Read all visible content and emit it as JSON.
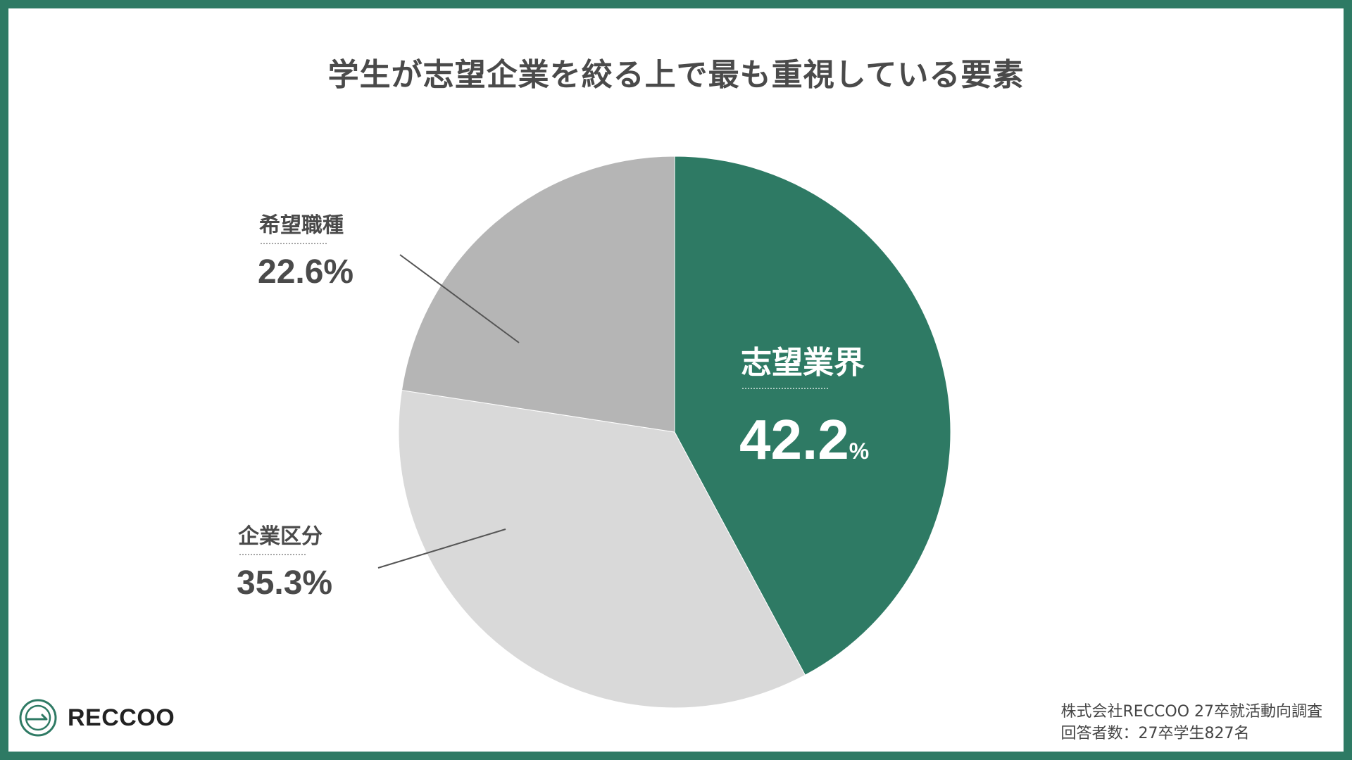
{
  "title": "学生が志望企業を絞る上で最も重視している要素",
  "chart_data": {
    "type": "pie",
    "title": "学生が志望企業を絞る上で最も重視している要素",
    "unit": "%",
    "slices": [
      {
        "label": "志望業界",
        "value": 42.2,
        "value_text": "42.2",
        "color": "#2e7a64"
      },
      {
        "label": "企業区分",
        "value": 35.3,
        "value_text": "35.3",
        "color": "#d9d9d9"
      },
      {
        "label": "希望職種",
        "value": 22.6,
        "value_text": "22.6",
        "color": "#b5b5b5"
      }
    ]
  },
  "brand": {
    "name": "RECCOO",
    "icon": "reccoo-logo-icon",
    "border_color": "#2e7a64"
  },
  "source": {
    "line1": "株式会社RECCOO 27卒就活動向調査",
    "line2": "回答者数：27卒学生827名"
  }
}
